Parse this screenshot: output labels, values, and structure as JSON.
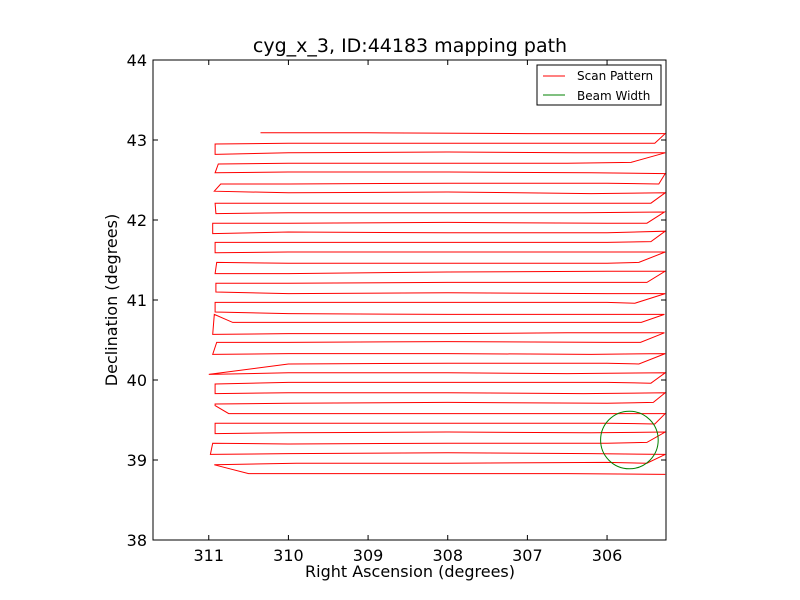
{
  "chart_data": {
    "type": "line",
    "title": "cyg_x_3, ID:44183 mapping path",
    "xlabel": "Right Ascension (degrees)",
    "ylabel": "Declination (degrees)",
    "xlim": [
      311.7,
      305.26
    ],
    "ylim": [
      38,
      44
    ],
    "x_reversed": true,
    "xticks": [
      311,
      310,
      309,
      308,
      307,
      306
    ],
    "yticks": [
      38,
      39,
      40,
      41,
      42,
      43,
      44
    ],
    "grid": false,
    "legend_position": "top-right",
    "colors": {
      "scan": "#ff0000",
      "beam": "#008000"
    },
    "series": [
      {
        "name": "Scan Pattern",
        "color": "#ff0000",
        "points": [
          [
            310.35,
            43.09
          ],
          [
            309.0,
            43.09
          ],
          [
            307.0,
            43.08
          ],
          [
            305.95,
            43.08
          ],
          [
            305.27,
            43.08
          ],
          [
            305.4,
            42.96
          ],
          [
            306.0,
            42.96
          ],
          [
            308.0,
            42.96
          ],
          [
            310.0,
            42.96
          ],
          [
            310.92,
            42.95
          ],
          [
            310.92,
            42.82
          ],
          [
            310.0,
            42.84
          ],
          [
            308.0,
            42.85
          ],
          [
            306.4,
            42.84
          ],
          [
            305.27,
            42.84
          ],
          [
            305.7,
            42.72
          ],
          [
            306.5,
            42.71
          ],
          [
            308.0,
            42.71
          ],
          [
            310.0,
            42.71
          ],
          [
            310.88,
            42.7
          ],
          [
            310.92,
            42.59
          ],
          [
            310.0,
            42.6
          ],
          [
            308.0,
            42.6
          ],
          [
            306.2,
            42.59
          ],
          [
            305.27,
            42.58
          ],
          [
            305.35,
            42.45
          ],
          [
            306.0,
            42.46
          ],
          [
            308.0,
            42.46
          ],
          [
            310.0,
            42.45
          ],
          [
            310.85,
            42.45
          ],
          [
            310.93,
            42.36
          ],
          [
            310.0,
            42.34
          ],
          [
            308.0,
            42.35
          ],
          [
            306.2,
            42.33
          ],
          [
            305.27,
            42.34
          ],
          [
            305.45,
            42.21
          ],
          [
            306.0,
            42.21
          ],
          [
            308.0,
            42.21
          ],
          [
            310.0,
            42.21
          ],
          [
            310.92,
            42.21
          ],
          [
            310.91,
            42.08
          ],
          [
            310.0,
            42.09
          ],
          [
            308.0,
            42.09
          ],
          [
            306.3,
            42.09
          ],
          [
            305.28,
            42.1
          ],
          [
            305.5,
            41.96
          ],
          [
            306.0,
            41.96
          ],
          [
            308.0,
            41.97
          ],
          [
            310.0,
            41.96
          ],
          [
            310.95,
            41.96
          ],
          [
            310.95,
            41.83
          ],
          [
            310.0,
            41.85
          ],
          [
            308.0,
            41.84
          ],
          [
            306.0,
            41.84
          ],
          [
            305.27,
            41.86
          ],
          [
            305.45,
            41.73
          ],
          [
            306.0,
            41.72
          ],
          [
            308.0,
            41.72
          ],
          [
            310.0,
            41.72
          ],
          [
            310.92,
            41.72
          ],
          [
            310.92,
            41.59
          ],
          [
            310.0,
            41.6
          ],
          [
            308.0,
            41.6
          ],
          [
            306.2,
            41.6
          ],
          [
            305.27,
            41.6
          ],
          [
            305.6,
            41.47
          ],
          [
            306.0,
            41.46
          ],
          [
            308.0,
            41.46
          ],
          [
            310.0,
            41.46
          ],
          [
            310.9,
            41.47
          ],
          [
            310.92,
            41.33
          ],
          [
            310.0,
            41.33
          ],
          [
            308.0,
            41.35
          ],
          [
            306.0,
            41.36
          ],
          [
            305.27,
            41.36
          ],
          [
            305.5,
            41.22
          ],
          [
            306.0,
            41.22
          ],
          [
            308.0,
            41.22
          ],
          [
            310.0,
            41.21
          ],
          [
            310.91,
            41.21
          ],
          [
            310.91,
            41.1
          ],
          [
            310.0,
            41.08
          ],
          [
            308.0,
            41.09
          ],
          [
            306.0,
            41.08
          ],
          [
            305.27,
            41.08
          ],
          [
            305.65,
            40.96
          ],
          [
            306.0,
            40.97
          ],
          [
            308.0,
            40.97
          ],
          [
            310.0,
            40.97
          ],
          [
            310.92,
            40.97
          ],
          [
            310.92,
            40.85
          ],
          [
            310.0,
            40.83
          ],
          [
            308.0,
            40.82
          ],
          [
            306.3,
            40.82
          ],
          [
            305.28,
            40.82
          ],
          [
            305.57,
            40.72
          ],
          [
            306.0,
            40.72
          ],
          [
            308.0,
            40.72
          ],
          [
            309.5,
            40.72
          ],
          [
            310.7,
            40.72
          ],
          [
            310.93,
            40.82
          ],
          [
            310.95,
            40.57
          ],
          [
            310.0,
            40.58
          ],
          [
            308.0,
            40.58
          ],
          [
            306.5,
            40.59
          ],
          [
            305.28,
            40.59
          ],
          [
            305.58,
            40.47
          ],
          [
            306.0,
            40.47
          ],
          [
            308.0,
            40.48
          ],
          [
            310.0,
            40.47
          ],
          [
            310.9,
            40.47
          ],
          [
            310.95,
            40.32
          ],
          [
            310.0,
            40.33
          ],
          [
            308.0,
            40.33
          ],
          [
            306.2,
            40.32
          ],
          [
            305.27,
            40.33
          ],
          [
            305.6,
            40.2
          ],
          [
            306.0,
            40.21
          ],
          [
            308.0,
            40.21
          ],
          [
            310.0,
            40.2
          ],
          [
            311.0,
            40.07
          ],
          [
            311.0,
            40.07
          ],
          [
            310.0,
            40.09
          ],
          [
            308.0,
            40.09
          ],
          [
            306.5,
            40.08
          ],
          [
            305.27,
            40.09
          ],
          [
            305.45,
            39.96
          ],
          [
            306.0,
            39.97
          ],
          [
            308.0,
            39.97
          ],
          [
            310.0,
            39.97
          ],
          [
            310.92,
            39.95
          ],
          [
            310.92,
            39.83
          ],
          [
            310.0,
            39.84
          ],
          [
            308.0,
            39.84
          ],
          [
            306.3,
            39.83
          ],
          [
            305.27,
            39.84
          ],
          [
            305.42,
            39.72
          ],
          [
            306.0,
            39.71
          ],
          [
            308.0,
            39.72
          ],
          [
            310.0,
            39.71
          ],
          [
            310.92,
            39.7
          ],
          [
            310.92,
            39.68
          ],
          [
            310.75,
            39.58
          ],
          [
            310.0,
            39.58
          ],
          [
            308.0,
            39.58
          ],
          [
            306.2,
            39.58
          ],
          [
            305.27,
            39.58
          ],
          [
            305.4,
            39.45
          ],
          [
            306.0,
            39.46
          ],
          [
            308.0,
            39.46
          ],
          [
            310.0,
            39.46
          ],
          [
            310.92,
            39.46
          ],
          [
            310.92,
            39.33
          ],
          [
            310.0,
            39.34
          ],
          [
            308.0,
            39.35
          ],
          [
            306.2,
            39.34
          ],
          [
            305.27,
            39.35
          ],
          [
            305.5,
            39.22
          ],
          [
            306.0,
            39.21
          ],
          [
            308.0,
            39.21
          ],
          [
            310.0,
            39.2
          ],
          [
            310.95,
            39.21
          ],
          [
            310.98,
            39.07
          ],
          [
            310.0,
            39.08
          ],
          [
            308.0,
            39.09
          ],
          [
            306.2,
            39.08
          ],
          [
            305.27,
            39.07
          ],
          [
            305.5,
            38.96
          ],
          [
            306.0,
            38.97
          ],
          [
            308.0,
            38.96
          ],
          [
            309.9,
            38.96
          ],
          [
            310.93,
            38.94
          ],
          [
            310.93,
            38.94
          ],
          [
            310.5,
            38.83
          ],
          [
            308.0,
            38.83
          ],
          [
            306.5,
            38.83
          ],
          [
            305.27,
            38.82
          ]
        ]
      },
      {
        "name": "Beam Width",
        "color": "#008000",
        "circle": {
          "center": [
            305.72,
            39.25
          ],
          "radius_dec": 0.36
        }
      }
    ]
  }
}
